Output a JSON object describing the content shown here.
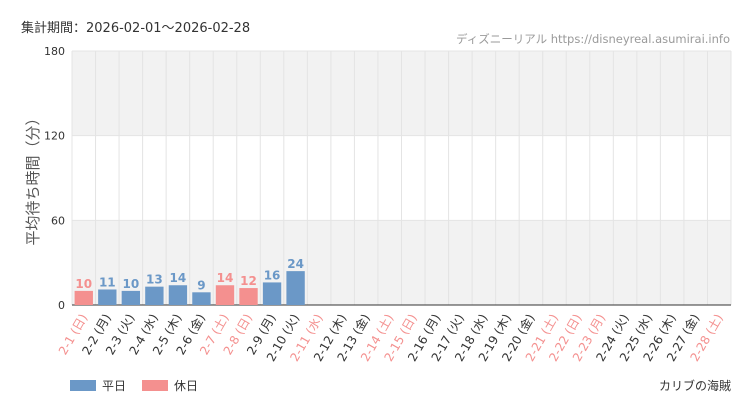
{
  "header": {
    "period_label": "集計期間：2026-02-01～2026-02-28",
    "source": "ディズニーリアル https://disneyreal.asumirai.info"
  },
  "colors": {
    "weekday": "#6b98c7",
    "holiday": "#f4908f",
    "band": "#f2f2f2",
    "grid": "#e4e4e4",
    "axis": "#333333"
  },
  "legend": {
    "weekday_label": "平日",
    "holiday_label": "休日"
  },
  "footer": {
    "park_name": "カリブの海賊"
  },
  "chart_data": {
    "type": "bar",
    "ylabel": "平均待ち時間（分）",
    "ylim": [
      0,
      180
    ],
    "yticks": [
      0,
      60,
      120,
      180
    ],
    "shaded_bands": [
      [
        120,
        180
      ],
      [
        0,
        60
      ]
    ],
    "grid": true,
    "categories": [
      "2-1 (日)",
      "2-2 (月)",
      "2-3 (火)",
      "2-4 (水)",
      "2-5 (木)",
      "2-6 (金)",
      "2-7 (土)",
      "2-8 (日)",
      "2-9 (月)",
      "2-10 (火)",
      "2-11 (水)",
      "2-12 (木)",
      "2-13 (金)",
      "2-14 (土)",
      "2-15 (日)",
      "2-16 (月)",
      "2-17 (火)",
      "2-18 (水)",
      "2-19 (木)",
      "2-20 (金)",
      "2-21 (土)",
      "2-22 (日)",
      "2-23 (月)",
      "2-24 (火)",
      "2-25 (水)",
      "2-26 (木)",
      "2-27 (金)",
      "2-28 (土)"
    ],
    "values": [
      10,
      11,
      10,
      13,
      14,
      9,
      14,
      12,
      16,
      24,
      null,
      null,
      null,
      null,
      null,
      null,
      null,
      null,
      null,
      null,
      null,
      null,
      null,
      null,
      null,
      null,
      null,
      null
    ],
    "holiday": [
      true,
      false,
      false,
      false,
      false,
      false,
      true,
      true,
      false,
      false,
      true,
      false,
      false,
      true,
      true,
      false,
      false,
      false,
      false,
      false,
      true,
      true,
      true,
      false,
      false,
      false,
      false,
      true
    ]
  }
}
